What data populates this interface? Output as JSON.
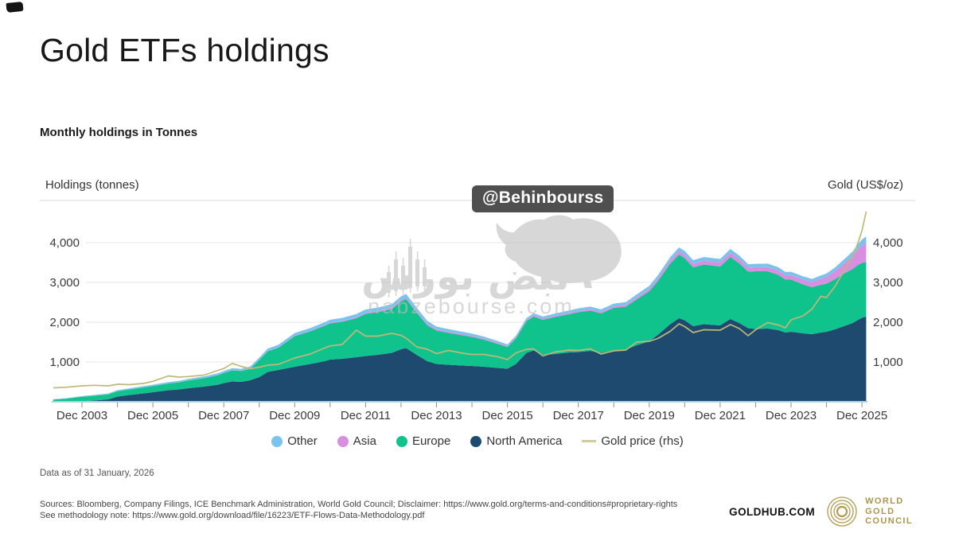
{
  "page": {
    "title": "Gold ETFs holdings",
    "subtitle": "Monthly holdings in Tonnes"
  },
  "watermarks": {
    "badge": "@Behinbourss",
    "site_fa": "نبض بورس",
    "site_url": "nabzebourse.com"
  },
  "legend": [
    {
      "label": "Other",
      "color": "#79c3ee",
      "swatch": "dot"
    },
    {
      "label": "Asia",
      "color": "#d88fe0",
      "swatch": "dot"
    },
    {
      "label": "Europe",
      "color": "#10c28c",
      "swatch": "dot"
    },
    {
      "label": "North America",
      "color": "#1e4a70",
      "swatch": "dot"
    },
    {
      "label": "Gold price (rhs)",
      "color": "#d3cc96",
      "swatch": "line"
    }
  ],
  "footnotes": {
    "data_as_of": "Data as of 31 January, 2026",
    "sources": "Sources: Bloomberg, Company Filings, ICE Benchmark Administration, World Gold Council; Disclaimer: https://www.gold.org/terms-and-conditions#proprietary-rights",
    "methodology": "See methodology note: https://www.gold.org/download/file/16223/ETF-Flows-Data-Methodology.pdf"
  },
  "brand": {
    "goldhub": "GOLDHUB.COM",
    "wgc_lines": [
      "WORLD",
      "GOLD",
      "COUNCIL"
    ],
    "gold_color": "#ab9649"
  },
  "chart_data": {
    "type": "area",
    "stacked": true,
    "title": "Gold ETFs holdings",
    "subtitle": "Monthly holdings in Tonnes",
    "x_unit": "decimal_year",
    "left_axis": {
      "title": "Holdings (tonnes)",
      "ticks": [
        1000,
        2000,
        3000,
        4000
      ],
      "range": [
        0,
        5060
      ]
    },
    "right_axis": {
      "title": "Gold (US$/oz)",
      "ticks": [
        1000,
        2000,
        3000,
        4000
      ],
      "range": [
        0,
        5060
      ]
    },
    "x_ticks": {
      "t_start": 2003.96,
      "step_years": 2,
      "minor_step_years": 1,
      "labels": [
        "Dec 2003",
        "Dec 2005",
        "Dec 2007",
        "Dec 2009",
        "Dec 2011",
        "Dec 2013",
        "Dec 2015",
        "Dec 2017",
        "Dec 2019",
        "Dec 2021",
        "Dec 2023",
        "Dec 2025"
      ]
    },
    "grid": true,
    "legend_position": "bottom",
    "x": [
      2003.15,
      2003.5,
      2003.96,
      2004.3,
      2004.7,
      2004.96,
      2005.3,
      2005.7,
      2005.96,
      2006.4,
      2006.7,
      2006.96,
      2007.4,
      2007.8,
      2007.96,
      2008.2,
      2008.45,
      2008.7,
      2008.96,
      2009.2,
      2009.5,
      2009.96,
      2010.4,
      2010.8,
      2010.96,
      2011.3,
      2011.7,
      2011.96,
      2012.3,
      2012.7,
      2012.96,
      2013.1,
      2013.4,
      2013.7,
      2013.96,
      2014.3,
      2014.7,
      2014.96,
      2015.3,
      2015.7,
      2015.96,
      2016.2,
      2016.5,
      2016.7,
      2016.96,
      2017.3,
      2017.7,
      2017.96,
      2018.3,
      2018.6,
      2018.96,
      2019.3,
      2019.6,
      2019.96,
      2020.2,
      2020.55,
      2020.8,
      2020.96,
      2021.2,
      2021.5,
      2021.96,
      2022.25,
      2022.5,
      2022.75,
      2022.96,
      2023.3,
      2023.6,
      2023.8,
      2023.96,
      2024.3,
      2024.55,
      2024.8,
      2024.96,
      2025.2,
      2025.45,
      2025.7,
      2025.85,
      2025.96,
      2026.08
    ],
    "series": [
      {
        "name": "North America",
        "type": "area",
        "axis": "left",
        "color": "#1e4a70",
        "values": [
          4,
          6,
          15,
          30,
          60,
          130,
          170,
          210,
          240,
          290,
          310,
          340,
          380,
          430,
          470,
          510,
          500,
          540,
          620,
          750,
          800,
          880,
          950,
          1020,
          1060,
          1080,
          1120,
          1150,
          1180,
          1230,
          1320,
          1350,
          1180,
          1020,
          950,
          930,
          910,
          900,
          880,
          850,
          830,
          950,
          1230,
          1290,
          1180,
          1200,
          1240,
          1250,
          1280,
          1230,
          1300,
          1310,
          1420,
          1520,
          1680,
          1950,
          2100,
          2050,
          1900,
          1950,
          1920,
          2080,
          1980,
          1850,
          1830,
          1840,
          1800,
          1740,
          1760,
          1720,
          1700,
          1740,
          1760,
          1820,
          1900,
          1980,
          2060,
          2110,
          2140
        ]
      },
      {
        "name": "Europe",
        "type": "area",
        "axis": "left",
        "color": "#10c28c",
        "values": [
          50,
          70,
          110,
          120,
          125,
          135,
          140,
          150,
          155,
          170,
          180,
          195,
          215,
          240,
          255,
          280,
          275,
          285,
          430,
          520,
          560,
          770,
          820,
          890,
          910,
          930,
          980,
          1060,
          1070,
          1100,
          1200,
          1230,
          1060,
          900,
          840,
          800,
          760,
          730,
          680,
          600,
          545,
          640,
          800,
          850,
          880,
          930,
          960,
          1000,
          1010,
          990,
          1060,
          1080,
          1150,
          1260,
          1350,
          1520,
          1600,
          1560,
          1480,
          1500,
          1480,
          1560,
          1500,
          1420,
          1450,
          1440,
          1390,
          1330,
          1310,
          1230,
          1180,
          1200,
          1210,
          1260,
          1320,
          1360,
          1380,
          1380,
          1370
        ]
      },
      {
        "name": "Asia",
        "type": "area",
        "axis": "left",
        "color": "#d88fe0",
        "values": [
          0,
          0,
          0,
          1,
          1,
          2,
          2,
          3,
          3,
          4,
          4,
          5,
          5,
          6,
          6,
          7,
          7,
          8,
          8,
          10,
          11,
          12,
          14,
          16,
          18,
          20,
          22,
          25,
          28,
          32,
          35,
          36,
          34,
          32,
          30,
          30,
          28,
          28,
          27,
          26,
          25,
          26,
          28,
          30,
          30,
          32,
          34,
          36,
          38,
          40,
          42,
          46,
          52,
          58,
          64,
          75,
          85,
          88,
          90,
          95,
          100,
          105,
          103,
          100,
          100,
          105,
          108,
          110,
          115,
          122,
          128,
          150,
          165,
          200,
          250,
          320,
          390,
          440,
          480
        ]
      },
      {
        "name": "Other",
        "type": "area",
        "axis": "left",
        "color": "#79c3ee",
        "values": [
          8,
          12,
          18,
          20,
          22,
          25,
          26,
          28,
          30,
          32,
          34,
          36,
          38,
          42,
          44,
          48,
          46,
          48,
          52,
          58,
          60,
          65,
          68,
          72,
          75,
          78,
          82,
          85,
          88,
          92,
          95,
          96,
          90,
          80,
          70,
          65,
          60,
          55,
          50,
          45,
          40,
          44,
          50,
          54,
          52,
          56,
          60,
          62,
          64,
          62,
          66,
          68,
          72,
          76,
          80,
          88,
          95,
          95,
          90,
          92,
          90,
          95,
          92,
          88,
          88,
          88,
          85,
          82,
          82,
          80,
          80,
          85,
          88,
          95,
          105,
          120,
          135,
          150,
          165
        ]
      },
      {
        "name": "Gold price (rhs)",
        "type": "line",
        "axis": "right",
        "color": "#c1b878",
        "values": [
          350,
          365,
          400,
          415,
          400,
          440,
          430,
          460,
          515,
          650,
          620,
          635,
          670,
          790,
          835,
          965,
          890,
          830,
          870,
          920,
          940,
          1100,
          1200,
          1350,
          1405,
          1440,
          1800,
          1650,
          1650,
          1720,
          1670,
          1600,
          1380,
          1320,
          1210,
          1290,
          1220,
          1190,
          1190,
          1130,
          1060,
          1230,
          1320,
          1330,
          1150,
          1250,
          1300,
          1290,
          1330,
          1200,
          1280,
          1300,
          1500,
          1520,
          1590,
          1770,
          1960,
          1890,
          1740,
          1810,
          1800,
          1940,
          1840,
          1660,
          1810,
          1990,
          1930,
          1860,
          2060,
          2160,
          2330,
          2650,
          2620,
          2900,
          3290,
          3650,
          4000,
          4300,
          4780
        ]
      }
    ]
  }
}
